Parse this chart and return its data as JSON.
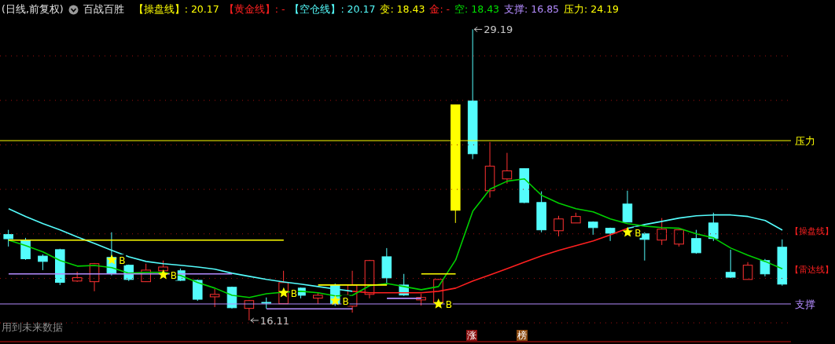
{
  "chart_data": {
    "type": "candlestick",
    "title": "百战百胜",
    "subtitle": "(日线,前复权)",
    "categories": [
      null,
      null,
      null,
      null,
      null,
      null,
      null,
      null,
      null,
      null,
      null,
      null,
      null,
      null,
      null,
      null,
      null,
      null,
      null,
      null,
      null,
      null,
      null,
      null,
      null,
      null,
      null,
      null,
      null,
      null,
      null,
      null,
      null,
      null,
      null,
      null,
      null,
      null,
      null,
      null,
      null,
      null,
      null,
      null,
      null,
      null
    ],
    "ohlc": [
      [
        19.97,
        20.18,
        19.43,
        19.78
      ],
      [
        19.71,
        19.82,
        18.83,
        18.88
      ],
      [
        19.0,
        19.08,
        18.37,
        18.76
      ],
      [
        19.29,
        19.33,
        17.7,
        17.82
      ],
      [
        17.88,
        18.3,
        17.84,
        18.03
      ],
      [
        17.85,
        18.69,
        17.42,
        18.66
      ],
      [
        18.94,
        20.07,
        18.13,
        18.23
      ],
      [
        18.59,
        18.62,
        17.88,
        17.95
      ],
      [
        17.85,
        18.66,
        17.84,
        18.37
      ],
      [
        18.34,
        18.8,
        18.3,
        18.51
      ],
      [
        18.34,
        18.44,
        17.88,
        17.91
      ],
      [
        17.91,
        17.95,
        16.99,
        17.06
      ],
      [
        17.17,
        17.52,
        16.71,
        17.28
      ],
      [
        17.6,
        17.63,
        16.64,
        16.68
      ],
      [
        16.65,
        17.03,
        16.11,
        17.0
      ],
      [
        16.92,
        17.14,
        16.64,
        16.92
      ],
      [
        16.86,
        18.34,
        16.85,
        17.81
      ],
      [
        17.56,
        17.59,
        17.1,
        17.24
      ],
      [
        17.11,
        17.38,
        16.85,
        17.24
      ],
      [
        17.68,
        17.77,
        16.76,
        16.86
      ],
      [
        16.75,
        18.34,
        16.46,
        17.7
      ],
      [
        17.28,
        18.83,
        17.1,
        18.8
      ],
      [
        18.97,
        19.36,
        17.7,
        18.02
      ],
      [
        17.7,
        18.2,
        17.21,
        17.25
      ],
      [
        17.03,
        17.31,
        16.78,
        17.14
      ],
      [
        16.9,
        17.98,
        16.89,
        17.95
      ],
      [
        21.06,
        25.8,
        20.49,
        25.8
      ],
      [
        25.97,
        29.19,
        23.36,
        23.6
      ],
      [
        21.94,
        24.13,
        21.63,
        23.04
      ],
      [
        22.47,
        23.64,
        22.26,
        22.83
      ],
      [
        22.93,
        22.93,
        21.38,
        21.41
      ],
      [
        21.41,
        21.91,
        20.07,
        20.18
      ],
      [
        20.14,
        20.81,
        19.89,
        20.67
      ],
      [
        20.49,
        20.95,
        20.49,
        20.78
      ],
      [
        20.53,
        20.56,
        19.96,
        20.28
      ],
      [
        20.25,
        20.28,
        19.68,
        20.03
      ],
      [
        21.34,
        21.94,
        20.53,
        20.53
      ],
      [
        20.0,
        20.07,
        18.8,
        19.75
      ],
      [
        19.72,
        20.71,
        19.5,
        20.21
      ],
      [
        19.54,
        20.2,
        19.43,
        20.18
      ],
      [
        19.79,
        20.18,
        19.11,
        19.15
      ],
      [
        20.49,
        20.95,
        19.68,
        19.79
      ],
      [
        18.27,
        19.29,
        18.02,
        18.05
      ],
      [
        17.95,
        18.73,
        17.95,
        18.59
      ],
      [
        18.8,
        18.87,
        18.09,
        18.2
      ],
      [
        19.4,
        19.75,
        17.67,
        17.74
      ]
    ],
    "colors": [
      "#54fcfc",
      "#54fcfc",
      "#54fcfc",
      "#54fcfc",
      "#ff3232",
      "#ff3232",
      "#54fcfc",
      "#54fcfc",
      "#ff3232",
      "#ff3232",
      "#54fcfc",
      "#54fcfc",
      "#ff3232",
      "#54fcfc",
      "#ff3232",
      "#54fcfc",
      "#ff3232",
      "#54fcfc",
      "#ff3232",
      "#54fcfc",
      "#ff3232",
      "#ff3232",
      "#54fcfc",
      "#54fcfc",
      "#ff3232",
      "#ff3232",
      "#ffff00",
      "#54fcfc",
      "#ff3232",
      "#ff3232",
      "#54fcfc",
      "#54fcfc",
      "#ff3232",
      "#ff3232",
      "#54fcfc",
      "#54fcfc",
      "#54fcfc",
      "#54fcfc",
      "#ff3232",
      "#ff3232",
      "#54fcfc",
      "#54fcfc",
      "#54fcfc",
      "#ff3232",
      "#54fcfc",
      "#54fcfc"
    ],
    "series": [
      {
        "name": "【操盘线】",
        "type": "line",
        "color": "#54fcfc",
        "values": [
          21.13,
          20.78,
          20.46,
          20.18,
          19.86,
          19.57,
          19.26,
          18.97,
          18.76,
          18.66,
          18.59,
          18.51,
          18.41,
          18.23,
          18.09,
          17.95,
          17.84,
          17.74,
          17.63,
          17.52,
          17.42,
          null,
          null,
          null,
          null,
          null,
          null,
          null,
          null,
          null,
          null,
          null,
          null,
          null,
          null,
          null,
          20.25,
          20.42,
          20.56,
          20.71,
          20.81,
          20.85,
          20.85,
          20.78,
          20.6,
          20.17
        ]
      },
      {
        "type": "line",
        "color": "#ff2020",
        "values": [
          null,
          null,
          null,
          null,
          null,
          null,
          null,
          null,
          null,
          null,
          null,
          null,
          null,
          null,
          null,
          null,
          null,
          null,
          null,
          null,
          17.42,
          17.35,
          17.35,
          17.35,
          17.35,
          17.42,
          17.56,
          17.88,
          18.16,
          18.44,
          18.73,
          19.01,
          19.26,
          19.47,
          19.68,
          19.96,
          20.25,
          null,
          null,
          null,
          null,
          null,
          null,
          null,
          null,
          null
        ]
      },
      {
        "name": "【雷达线】",
        "type": "line",
        "color": "#00d000",
        "values": [
          19.72,
          19.47,
          19.19,
          18.8,
          18.55,
          18.58,
          18.48,
          18.23,
          18.27,
          18.27,
          18.13,
          17.81,
          17.56,
          17.24,
          17.14,
          17.31,
          17.38,
          17.42,
          17.35,
          17.21,
          17.24,
          17.67,
          17.77,
          17.63,
          17.49,
          17.63,
          18.83,
          21.02,
          22.01,
          22.37,
          22.47,
          21.73,
          21.38,
          21.13,
          20.99,
          20.67,
          20.46,
          20.35,
          20.28,
          20.25,
          20.0,
          19.82,
          19.36,
          19.04,
          18.76,
          18.43
        ]
      },
      {
        "type": "line",
        "color": "#ffff00",
        "values": [
          19.72,
          19.72,
          19.72,
          19.72,
          19.72,
          19.72,
          19.72,
          19.72,
          19.72,
          19.72,
          19.72,
          19.72,
          19.72,
          19.72,
          19.72,
          19.72,
          19.72,
          null,
          null,
          null,
          null,
          null,
          null,
          null,
          null,
          null,
          null,
          null,
          null,
          null,
          null,
          null,
          null,
          null,
          null,
          null,
          null,
          null,
          null,
          null,
          null,
          null,
          null,
          null,
          null,
          null
        ]
      },
      {
        "type": "line",
        "color": "#b48cff",
        "values": [
          18.2,
          18.2,
          18.2,
          18.2,
          18.2,
          18.2,
          18.2,
          18.2,
          18.2,
          18.2,
          18.2,
          18.2,
          18.2,
          18.2,
          null,
          null,
          null,
          null,
          null,
          null,
          null,
          null,
          null,
          null,
          null,
          null,
          null,
          null,
          null,
          null,
          null,
          null,
          null,
          null,
          null,
          null,
          null,
          null,
          null,
          null,
          null,
          null,
          null,
          null,
          null,
          null
        ]
      },
      {
        "type": "line",
        "color": "#b48cff",
        "values": [
          null,
          null,
          null,
          null,
          null,
          null,
          null,
          null,
          null,
          null,
          null,
          null,
          null,
          null,
          null,
          16.63,
          16.63,
          16.63,
          16.63,
          16.63,
          16.63,
          null,
          null,
          null,
          null,
          null,
          null,
          null,
          null,
          null,
          null,
          null,
          null,
          null,
          null,
          null,
          null,
          null,
          null,
          null,
          null,
          null,
          null,
          null,
          null,
          null
        ]
      },
      {
        "type": "line",
        "color": "#ffff00",
        "values": [
          null,
          null,
          null,
          null,
          null,
          null,
          null,
          null,
          null,
          null,
          null,
          null,
          null,
          null,
          null,
          null,
          null,
          null,
          17.7,
          17.7,
          17.7,
          17.7,
          17.7,
          null,
          null,
          null,
          null,
          null,
          null,
          null,
          null,
          null,
          null,
          null,
          null,
          null,
          null,
          null,
          null,
          null,
          null,
          null,
          null,
          null,
          null,
          null
        ]
      },
      {
        "type": "line",
        "color": "#b48cff",
        "values": [
          null,
          null,
          null,
          null,
          null,
          null,
          null,
          null,
          null,
          null,
          null,
          null,
          null,
          null,
          null,
          null,
          null,
          null,
          null,
          null,
          null,
          null,
          17.1,
          17.1,
          17.1,
          null,
          null,
          null,
          null,
          null,
          null,
          null,
          null,
          null,
          null,
          null,
          null,
          null,
          null,
          null,
          null,
          null,
          null,
          null,
          null,
          null
        ]
      },
      {
        "type": "line",
        "color": "#ffff00",
        "values": [
          null,
          null,
          null,
          null,
          null,
          null,
          null,
          null,
          null,
          null,
          null,
          null,
          null,
          null,
          null,
          null,
          null,
          null,
          null,
          null,
          null,
          null,
          null,
          null,
          18.2,
          18.2,
          18.2,
          null,
          null,
          null,
          null,
          null,
          null,
          null,
          null,
          null,
          null,
          null,
          null,
          null,
          null,
          null,
          null,
          null,
          null,
          null
        ]
      },
      {
        "type": "scatter",
        "marker": "star",
        "color": "#ffff00",
        "values": [
          null,
          null,
          null,
          null,
          null,
          null,
          18.83,
          null,
          null,
          18.16,
          null,
          null,
          null,
          null,
          null,
          null,
          17.35,
          null,
          null,
          17.0,
          null,
          null,
          null,
          null,
          null,
          16.85,
          null,
          null,
          null,
          null,
          null,
          null,
          null,
          null,
          null,
          null,
          20.07,
          null,
          null,
          null,
          null,
          null,
          null,
          null,
          null,
          null
        ],
        "value_labels": [
          null,
          null,
          null,
          null,
          null,
          null,
          "B",
          null,
          null,
          "B",
          null,
          null,
          null,
          null,
          null,
          null,
          "B",
          null,
          null,
          "B",
          null,
          null,
          null,
          null,
          null,
          "B",
          null,
          null,
          null,
          null,
          null,
          null,
          null,
          null,
          null,
          null,
          "B",
          null,
          null,
          null,
          null,
          null,
          null,
          null,
          null,
          null
        ]
      }
    ],
    "ref_lines": [
      {
        "axis": "y",
        "value": 24.19,
        "label": "压力",
        "color": "#ffff00"
      },
      {
        "axis": "y",
        "value": 16.85,
        "label": "支撑",
        "color": "#b48cff"
      }
    ],
    "annotations": [
      "【操盘线】: 20.17",
      "【黄金线】: -",
      "【空仓线】: 20.17",
      "变: 18.43",
      "金: -",
      "空: 18.43",
      "支撑: 16.85",
      "压力: 24.19",
      "用到未来数据",
      "涨",
      "榜",
      "29.19",
      "16.11"
    ],
    "yticks": [
      {
        "value": 16,
        "label": null
      },
      {
        "value": 18,
        "label": null
      },
      {
        "value": 20,
        "label": null
      },
      {
        "value": 22,
        "label": null
      },
      {
        "value": 24,
        "label": null
      },
      {
        "value": 26,
        "label": null
      },
      {
        "value": 28,
        "label": null
      }
    ],
    "grid": "y",
    "tick_labels": false
  }
}
